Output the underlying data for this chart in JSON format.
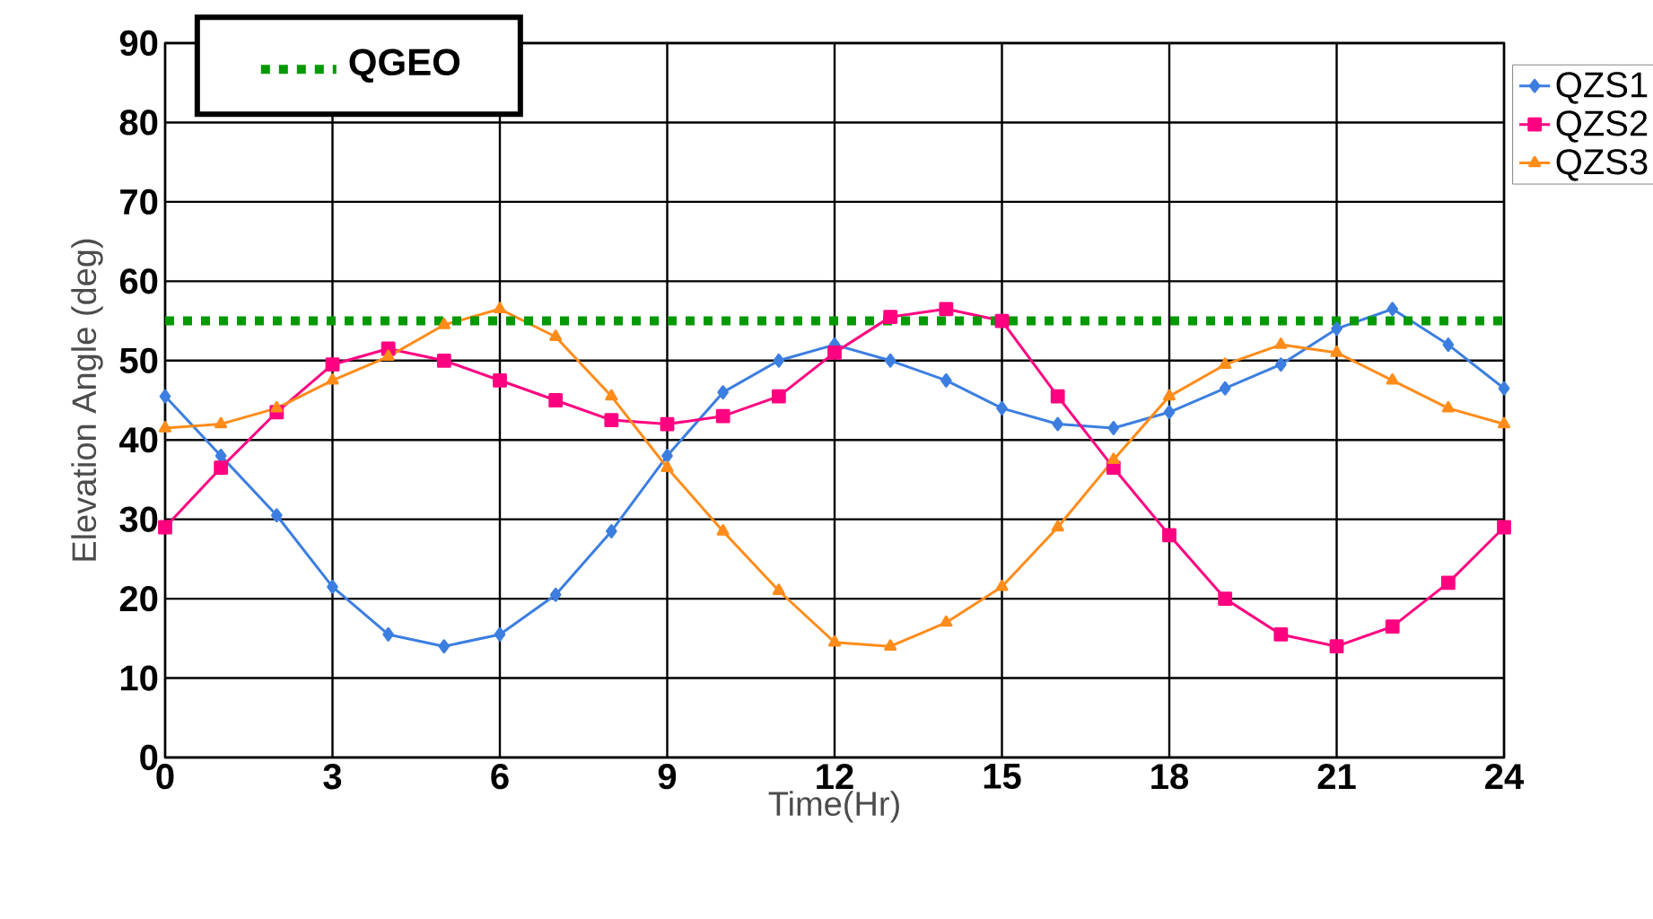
{
  "chart_data": {
    "type": "line",
    "xlabel": "Time(Hr)",
    "ylabel": "Elevation Angle (deg)",
    "x": [
      0,
      1,
      2,
      3,
      4,
      5,
      6,
      7,
      8,
      9,
      10,
      11,
      12,
      13,
      14,
      15,
      16,
      17,
      18,
      19,
      20,
      21,
      22,
      23,
      24
    ],
    "series": [
      {
        "name": "QZS1",
        "color": "#3c7ee0",
        "marker": "diamond",
        "values": [
          45.5,
          38,
          30.5,
          21.5,
          15.5,
          14,
          15.5,
          20.5,
          28.5,
          38,
          46,
          50,
          52,
          50,
          47.5,
          44,
          42,
          41.5,
          43.5,
          46.5,
          49.5,
          54,
          56.5,
          52,
          46.5
        ]
      },
      {
        "name": "QZS2",
        "color": "#ff0080",
        "marker": "square",
        "values": [
          29,
          36.5,
          43.5,
          49.5,
          51.5,
          50,
          47.5,
          45,
          42.5,
          42,
          43,
          45.5,
          51,
          55.5,
          56.5,
          55,
          45.5,
          36.5,
          28,
          20,
          15.5,
          14,
          16.5,
          22,
          29
        ]
      },
      {
        "name": "QZS3",
        "color": "#ff8c1a",
        "marker": "triangle",
        "values": [
          41.5,
          42,
          44,
          47.5,
          50.5,
          54.5,
          56.5,
          53,
          45.5,
          36.5,
          28.5,
          21,
          14.5,
          14,
          17,
          21.5,
          29,
          37.5,
          45.5,
          49.5,
          52,
          51,
          47.5,
          44,
          42
        ]
      }
    ],
    "ref_lines": [
      {
        "axis": "y",
        "value": 55,
        "label": "QGEO",
        "color": "#009900",
        "line_style": "dotted"
      }
    ],
    "xlim": [
      0,
      24
    ],
    "ylim": [
      0,
      90
    ],
    "xticks": [
      0,
      3,
      6,
      9,
      12,
      15,
      18,
      21,
      24
    ],
    "yticks": [
      0,
      10,
      20,
      30,
      40,
      50,
      60,
      70,
      80,
      90
    ],
    "grid": true,
    "legend": "top right",
    "line_style": "solid"
  }
}
